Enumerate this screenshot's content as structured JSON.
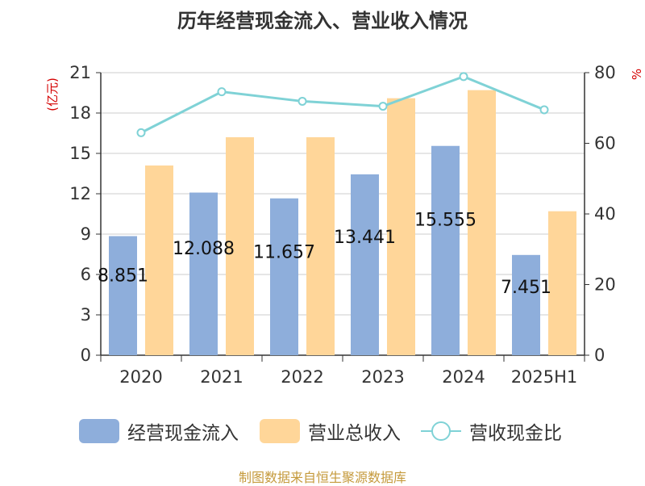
{
  "title": "历年经营现金流入、营业收入情况",
  "source": "制图数据来自恒生聚源数据库",
  "left_unit": "(亿元)",
  "right_unit_partial": "%",
  "legend": [
    {
      "label": "经营现金流入",
      "kind": "bar",
      "color": "#8eaedb"
    },
    {
      "label": "营业总收入",
      "kind": "bar",
      "color": "#ffd699"
    },
    {
      "label": "营收现金比",
      "kind": "line",
      "color": "#7fd2d6"
    }
  ],
  "chart_data": {
    "type": "bar",
    "title": "历年经营现金流入、营业收入情况",
    "categories": [
      "2020",
      "2021",
      "2022",
      "2023",
      "2024",
      "2025H1"
    ],
    "series": [
      {
        "name": "经营现金流入",
        "type": "bar",
        "axis": "left",
        "values": [
          8.851,
          12.088,
          11.657,
          13.441,
          15.555,
          7.451
        ],
        "labels": [
          "8.851",
          "12.088",
          "11.657",
          "13.441",
          "15.555",
          "7.451"
        ]
      },
      {
        "name": "营业总收入",
        "type": "bar",
        "axis": "left",
        "values": [
          14.1,
          16.2,
          16.2,
          19.1,
          19.7,
          10.7
        ]
      },
      {
        "name": "营收现金比",
        "type": "line",
        "axis": "right",
        "values": [
          63.0,
          74.6,
          71.9,
          70.5,
          78.9,
          69.5
        ]
      }
    ],
    "left_axis": {
      "ylim": [
        0,
        21
      ],
      "ticks": [
        "0",
        "3",
        "6",
        "9",
        "12",
        "15",
        "18",
        "21"
      ],
      "label": "(亿元)"
    },
    "right_axis": {
      "ylim": [
        0,
        80
      ],
      "ticks": [
        "0",
        "20",
        "40",
        "60",
        "80"
      ]
    },
    "grid": true,
    "legend_position": "bottom"
  }
}
